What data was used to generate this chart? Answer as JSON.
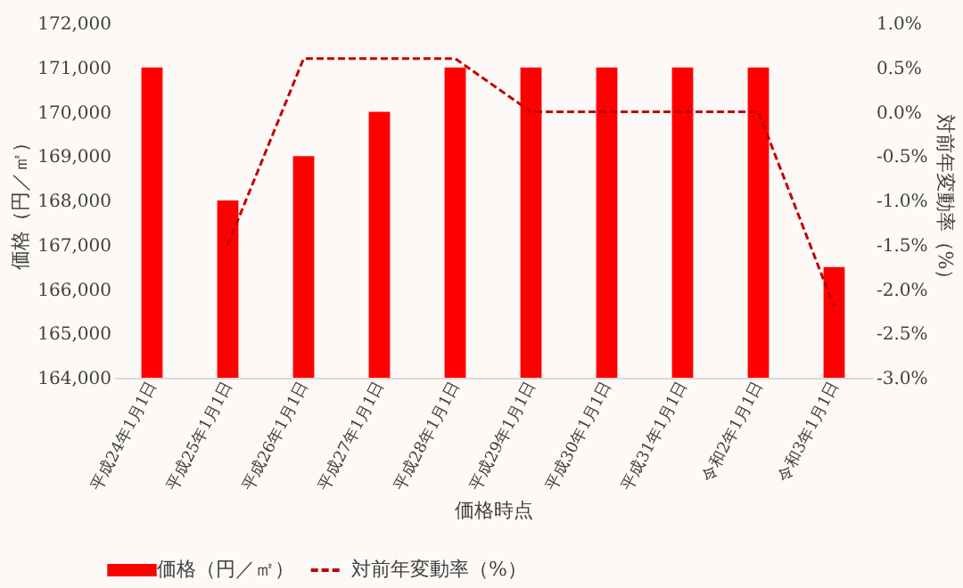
{
  "chart_data": {
    "type": "bar",
    "xlabel": "価格時点",
    "ylabel": "価格（円／㎡）",
    "y2label": "対前年変動率（%）",
    "categories": [
      "平成24年1月1日",
      "平成25年1月1日",
      "平成26年1月1日",
      "平成27年1月1日",
      "平成28年1月1日",
      "平成29年1月1日",
      "平成30年1月1日",
      "平成31年1月1日",
      "令和2年1月1日",
      "令和3年1月1日"
    ],
    "series": [
      {
        "name": "価格（円／㎡）",
        "color": "#ff0000",
        "values": [
          171000,
          168000,
          169000,
          170000,
          171000,
          171000,
          171000,
          171000,
          171000,
          166500
        ]
      },
      {
        "name": "対前年変動率（%）",
        "type": "line",
        "axis": "y2",
        "color": "#c00000",
        "line_style": "dashed",
        "values": [
          null,
          -1.5,
          0.6,
          0.6,
          0.6,
          0.0,
          0.0,
          0.0,
          0.0,
          -2.2
        ]
      }
    ],
    "ylim": [
      164000,
      172000
    ],
    "yticks": [
      {
        "value": 164000,
        "label": "164,000"
      },
      {
        "value": 165000,
        "label": "165,000"
      },
      {
        "value": 166000,
        "label": "166,000"
      },
      {
        "value": 167000,
        "label": "167,000"
      },
      {
        "value": 168000,
        "label": "168,000"
      },
      {
        "value": 169000,
        "label": "169,000"
      },
      {
        "value": 170000,
        "label": "170,000"
      },
      {
        "value": 171000,
        "label": "171,000"
      },
      {
        "value": 172000,
        "label": "172,000"
      }
    ],
    "y2lim": [
      -3.0,
      1.0
    ],
    "y2ticks": [
      {
        "value": -3.0,
        "label": "-3.0%"
      },
      {
        "value": -2.5,
        "label": "-2.5%"
      },
      {
        "value": -2.0,
        "label": "-2.0%"
      },
      {
        "value": -1.5,
        "label": "-1.5%"
      },
      {
        "value": -1.0,
        "label": "-1.0%"
      },
      {
        "value": -0.5,
        "label": "-0.5%"
      },
      {
        "value": 0.0,
        "label": "0.0%"
      },
      {
        "value": 0.5,
        "label": "0.5%"
      },
      {
        "value": 1.0,
        "label": "1.0%"
      }
    ],
    "grid": false,
    "legend": "bottom"
  }
}
